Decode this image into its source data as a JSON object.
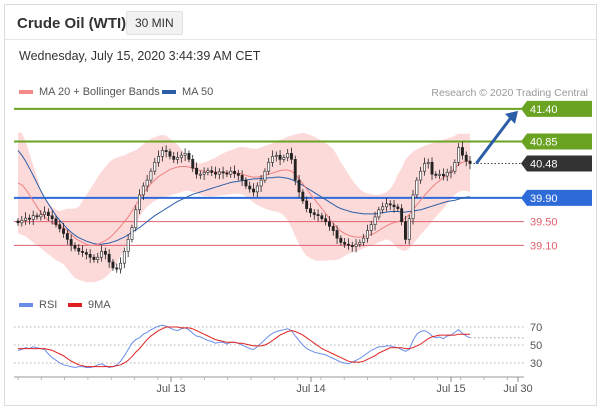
{
  "header": {
    "title": "Crude Oil (WTI)",
    "timeframe": "30 MIN",
    "datetime": "Wednesday, July 15, 2020 3:44:39 AM CET"
  },
  "legend": {
    "ma20": "MA 20 + Bollinger Bands",
    "ma50": "MA 50",
    "credit": "Research © 2020 Trading Central",
    "rsi": "RSI",
    "ma9": "9MA"
  },
  "colors": {
    "bb_band": "#fdd6d6",
    "ma20": "#f08080",
    "ma50": "#2b5ea7",
    "green": "#6aa321",
    "blue": "#2f6bd8",
    "red": "#e06070",
    "dark": "#333333",
    "arrow": "#2b5ea7",
    "rsi": "#6a8ee8",
    "rsi_ma": "#e02020"
  },
  "chart_data": [
    {
      "type": "candlestick",
      "x_ticks": [
        "Jul 13",
        "Jul 14",
        "Jul 15",
        "Jul 30"
      ],
      "price_labels": [
        {
          "value": 41.4,
          "text": "41.40",
          "style": "green"
        },
        {
          "value": 40.85,
          "text": "40.85",
          "style": "green"
        },
        {
          "value": 40.48,
          "text": "40.48",
          "style": "dark"
        },
        {
          "value": 39.9,
          "text": "39.90",
          "style": "blue"
        },
        {
          "value": 39.5,
          "text": "39.50",
          "style": "red"
        },
        {
          "value": 39.1,
          "text": "39.10",
          "style": "red"
        }
      ],
      "ylim": [
        38.55,
        41.55
      ],
      "n_bars": 120,
      "close": [
        39.48,
        39.52,
        39.56,
        39.54,
        39.6,
        39.58,
        39.62,
        39.66,
        39.6,
        39.55,
        39.45,
        39.38,
        39.3,
        39.2,
        39.1,
        39.05,
        39.0,
        38.98,
        38.95,
        38.9,
        38.86,
        38.9,
        39.0,
        38.95,
        38.82,
        38.72,
        38.7,
        38.8,
        39.0,
        39.2,
        39.4,
        39.7,
        39.95,
        40.1,
        40.2,
        40.35,
        40.5,
        40.6,
        40.7,
        40.68,
        40.6,
        40.55,
        40.58,
        40.62,
        40.65,
        40.55,
        40.4,
        40.3,
        40.3,
        40.33,
        40.36,
        40.33,
        40.3,
        40.34,
        40.32,
        40.3,
        40.35,
        40.31,
        40.28,
        40.2,
        40.1,
        40.05,
        40.0,
        40.1,
        40.2,
        40.35,
        40.5,
        40.6,
        40.62,
        40.55,
        40.58,
        40.65,
        40.55,
        40.2,
        40.0,
        39.85,
        39.72,
        39.65,
        39.62,
        39.6,
        39.55,
        39.5,
        39.42,
        39.35,
        39.22,
        39.15,
        39.12,
        39.1,
        39.08,
        39.12,
        39.15,
        39.22,
        39.35,
        39.45,
        39.58,
        39.7,
        39.75,
        39.8,
        39.78,
        39.75,
        39.72,
        39.5,
        39.2,
        39.55,
        39.95,
        40.2,
        40.35,
        40.48,
        40.5,
        40.3,
        40.28,
        40.3,
        40.27,
        40.33,
        40.35,
        40.5,
        40.75,
        40.62,
        40.52,
        40.48
      ],
      "bb_upper": [
        41.0,
        41.0,
        40.85,
        40.65,
        40.45,
        40.25,
        40.05,
        39.9,
        39.8,
        39.75,
        39.7,
        39.68,
        39.7,
        39.72,
        39.72,
        39.72,
        39.75,
        39.85,
        39.95,
        40.05,
        40.15,
        40.25,
        40.35,
        40.42,
        40.5,
        40.55,
        40.58,
        40.6,
        40.62,
        40.65,
        40.68,
        40.7,
        40.75,
        40.8,
        40.85,
        40.9,
        40.92,
        40.95,
        40.96,
        40.95,
        40.9,
        40.85,
        40.8,
        40.72,
        40.65,
        40.58,
        40.52,
        40.48,
        40.48,
        40.5,
        40.52,
        40.55,
        40.58,
        40.62,
        40.65,
        40.68,
        40.7,
        40.73,
        40.75,
        40.76,
        40.75,
        40.74,
        40.73,
        40.73,
        40.75,
        40.78,
        40.8,
        40.82,
        40.85,
        40.88,
        40.9,
        40.93,
        40.95,
        40.97,
        40.98,
        41.0,
        40.98,
        40.96,
        40.93,
        40.9,
        40.86,
        40.82,
        40.78,
        40.72,
        40.62,
        40.5,
        40.4,
        40.3,
        40.2,
        40.12,
        40.05,
        40.0,
        39.98,
        39.96,
        39.95,
        39.95,
        39.97,
        40.0,
        40.05,
        40.15,
        40.3,
        40.4,
        40.55,
        40.62,
        40.68,
        40.72,
        40.75,
        40.78,
        40.8,
        40.82,
        40.84,
        40.86,
        40.88,
        40.9,
        40.92,
        40.95,
        40.98,
        40.98,
        40.98,
        40.98
      ],
      "bb_lower": [
        39.3,
        39.28,
        39.25,
        39.2,
        39.15,
        39.1,
        39.05,
        39.0,
        38.95,
        38.9,
        38.85,
        38.82,
        38.78,
        38.7,
        38.62,
        38.55,
        38.52,
        38.5,
        38.48,
        38.48,
        38.48,
        38.5,
        38.52,
        38.56,
        38.62,
        38.7,
        38.8,
        38.92,
        39.05,
        39.18,
        39.3,
        39.45,
        39.58,
        39.68,
        39.75,
        39.8,
        39.85,
        39.88,
        39.9,
        39.92,
        39.94,
        39.96,
        39.98,
        40.0,
        40.02,
        40.02,
        40.0,
        39.98,
        39.95,
        39.93,
        39.92,
        39.92,
        39.93,
        39.94,
        39.95,
        39.95,
        39.96,
        39.97,
        39.97,
        39.96,
        39.93,
        39.88,
        39.82,
        39.78,
        39.75,
        39.72,
        39.7,
        39.68,
        39.67,
        39.65,
        39.6,
        39.52,
        39.4,
        39.25,
        39.12,
        39.0,
        38.92,
        38.88,
        38.85,
        38.84,
        38.84,
        38.84,
        38.85,
        38.85,
        38.86,
        38.88,
        38.92,
        38.96,
        38.98,
        39.0,
        39.02,
        39.05,
        39.08,
        39.1,
        39.12,
        39.15,
        39.18,
        39.2,
        39.18,
        39.12,
        39.05,
        39.02,
        39.0,
        39.05,
        39.12,
        39.2,
        39.28,
        39.35,
        39.42,
        39.5,
        39.58,
        39.65,
        39.72,
        39.8,
        39.88,
        39.95,
        40.0,
        40.02,
        40.02,
        40.0
      ],
      "ma20": [
        40.15,
        40.12,
        40.05,
        39.95,
        39.85,
        39.75,
        39.65,
        39.58,
        39.52,
        39.48,
        39.45,
        39.42,
        39.4,
        39.35,
        39.28,
        39.22,
        39.18,
        39.15,
        39.12,
        39.1,
        39.1,
        39.12,
        39.15,
        39.18,
        39.22,
        39.28,
        39.35,
        39.42,
        39.5,
        39.58,
        39.68,
        39.78,
        39.88,
        39.98,
        40.06,
        40.14,
        40.2,
        40.26,
        40.3,
        40.34,
        40.38,
        40.4,
        40.42,
        40.43,
        40.43,
        40.42,
        40.4,
        40.38,
        40.36,
        40.35,
        40.34,
        40.34,
        40.34,
        40.33,
        40.33,
        40.33,
        40.33,
        40.32,
        40.32,
        40.3,
        40.28,
        40.26,
        40.25,
        40.25,
        40.26,
        40.28,
        40.3,
        40.32,
        40.34,
        40.36,
        40.37,
        40.37,
        40.35,
        40.3,
        40.22,
        40.14,
        40.05,
        39.96,
        39.88,
        39.8,
        39.72,
        39.64,
        39.55,
        39.47,
        39.4,
        39.34,
        39.3,
        39.27,
        39.25,
        39.24,
        39.24,
        39.25,
        39.26,
        39.28,
        39.31,
        39.35,
        39.39,
        39.43,
        39.46,
        39.48,
        39.5,
        39.52,
        39.56,
        39.62,
        39.7,
        39.78,
        39.86,
        39.94,
        40.01,
        40.08,
        40.14,
        40.19,
        40.24,
        40.29,
        40.34,
        40.4,
        40.46,
        40.5,
        40.52,
        40.52
      ],
      "ma50": [
        40.7,
        40.62,
        40.52,
        40.4,
        40.28,
        40.15,
        40.02,
        39.9,
        39.8,
        39.7,
        39.6,
        39.52,
        39.45,
        39.38,
        39.32,
        39.27,
        39.23,
        39.2,
        39.17,
        39.15,
        39.13,
        39.12,
        39.12,
        39.13,
        39.14,
        39.16,
        39.18,
        39.21,
        39.24,
        39.28,
        39.32,
        39.36,
        39.4,
        39.45,
        39.5,
        39.55,
        39.6,
        39.64,
        39.68,
        39.72,
        39.76,
        39.8,
        39.84,
        39.87,
        39.9,
        39.93,
        39.96,
        39.98,
        40.0,
        40.02,
        40.04,
        40.06,
        40.08,
        40.1,
        40.12,
        40.14,
        40.16,
        40.17,
        40.18,
        40.19,
        40.2,
        40.21,
        40.22,
        40.22,
        40.23,
        40.23,
        40.24,
        40.24,
        40.25,
        40.25,
        40.24,
        40.23,
        40.21,
        40.18,
        40.15,
        40.11,
        40.07,
        40.03,
        39.99,
        39.95,
        39.91,
        39.87,
        39.83,
        39.79,
        39.75,
        39.72,
        39.7,
        39.68,
        39.66,
        39.65,
        39.64,
        39.63,
        39.63,
        39.63,
        39.63,
        39.64,
        39.65,
        39.66,
        39.67,
        39.67,
        39.67,
        39.66,
        39.66,
        39.67,
        39.68,
        39.69,
        39.7,
        39.72,
        39.74,
        39.76,
        39.78,
        39.8,
        39.82,
        39.84,
        39.85,
        39.86,
        39.88,
        39.9,
        39.91,
        39.92
      ]
    },
    {
      "type": "line",
      "name": "RSI",
      "y_ticks": [
        70,
        50,
        30
      ],
      "ylim": [
        20,
        80
      ],
      "rsi": [
        44,
        45,
        47,
        46,
        48,
        47,
        46,
        45,
        40,
        36,
        33,
        30,
        28,
        27,
        26,
        25,
        26,
        26,
        25,
        25,
        26,
        28,
        29,
        27,
        25,
        26,
        28,
        32,
        38,
        45,
        52,
        56,
        58,
        62,
        64,
        67,
        69,
        71,
        72,
        71,
        69,
        67,
        66,
        68,
        69,
        67,
        63,
        60,
        59,
        57,
        55,
        54,
        52,
        53,
        53,
        51,
        53,
        53,
        52,
        50,
        48,
        46,
        45,
        48,
        52,
        56,
        60,
        63,
        65,
        66,
        67,
        68,
        66,
        60,
        55,
        50,
        46,
        44,
        42,
        41,
        40,
        39,
        37,
        35,
        33,
        31,
        30,
        29,
        31,
        33,
        35,
        38,
        41,
        44,
        46,
        48,
        48,
        49,
        49,
        48,
        47,
        45,
        43,
        45,
        55,
        62,
        65,
        66,
        64,
        60,
        58,
        59,
        57,
        60,
        61,
        64,
        67,
        63,
        60,
        58
      ],
      "ma9": [
        46,
        46,
        46,
        46,
        46,
        46,
        46,
        46,
        45,
        44,
        42,
        40,
        38,
        35,
        32,
        30,
        28,
        27,
        26,
        26,
        26,
        26,
        26,
        26,
        26,
        26,
        27,
        28,
        30,
        33,
        37,
        42,
        46,
        51,
        56,
        60,
        63,
        66,
        68,
        70,
        70,
        70,
        70,
        69,
        69,
        69,
        68,
        66,
        64,
        62,
        60,
        58,
        56,
        55,
        54,
        53,
        53,
        53,
        52,
        52,
        51,
        50,
        49,
        49,
        49,
        50,
        52,
        55,
        58,
        61,
        63,
        65,
        66,
        65,
        63,
        61,
        58,
        55,
        52,
        49,
        46,
        44,
        42,
        40,
        38,
        36,
        34,
        32,
        31,
        31,
        31,
        32,
        34,
        36,
        38,
        41,
        43,
        45,
        47,
        47,
        47,
        47,
        46,
        46,
        47,
        49,
        51,
        54,
        57,
        59,
        60,
        61,
        61,
        61,
        61,
        61,
        62,
        62,
        62,
        62
      ]
    }
  ]
}
